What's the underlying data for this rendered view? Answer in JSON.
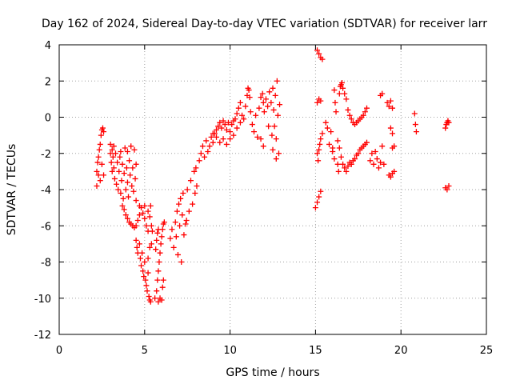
{
  "chart_data": {
    "type": "scatter",
    "title": "Day 162 of 2024, Sidereal Day-to-day VTEC variation (SDTVAR) for receiver larr",
    "xlabel": "GPS time / hours",
    "ylabel": "SDTVAR / TECUs",
    "xlim": [
      0,
      25
    ],
    "ylim": [
      -12,
      4
    ],
    "xticks": [
      0,
      5,
      10,
      15,
      20,
      25
    ],
    "yticks": [
      -12,
      -10,
      -8,
      -6,
      -4,
      -2,
      0,
      2,
      4
    ],
    "grid": true,
    "marker": "plus",
    "color": "#ff0000",
    "series": [
      {
        "points": [
          [
            2.2,
            -3.8
          ],
          [
            2.2,
            -3.0
          ],
          [
            2.25,
            -2.5
          ],
          [
            2.3,
            -3.2
          ],
          [
            2.3,
            -2.2
          ],
          [
            2.35,
            -1.8
          ],
          [
            2.4,
            -3.5
          ],
          [
            2.4,
            -1.5
          ],
          [
            2.45,
            -1.0
          ],
          [
            2.5,
            -0.7
          ],
          [
            2.5,
            -2.6
          ],
          [
            2.55,
            -0.6
          ],
          [
            2.6,
            -0.8
          ],
          [
            2.6,
            -3.2
          ],
          [
            3.0,
            -1.5
          ],
          [
            3.0,
            -2.0
          ],
          [
            3.05,
            -2.5
          ],
          [
            3.1,
            -1.8
          ],
          [
            3.1,
            -3.0
          ],
          [
            3.15,
            -2.2
          ],
          [
            3.2,
            -2.8
          ],
          [
            3.2,
            -1.6
          ],
          [
            3.25,
            -3.4
          ],
          [
            3.3,
            -2.0
          ],
          [
            3.35,
            -3.7
          ],
          [
            3.4,
            -2.5
          ],
          [
            3.45,
            -4.0
          ],
          [
            3.5,
            -3.0
          ],
          [
            3.55,
            -2.2
          ],
          [
            3.6,
            -4.2
          ],
          [
            3.6,
            -1.9
          ],
          [
            3.65,
            -3.5
          ],
          [
            3.7,
            -2.6
          ],
          [
            3.75,
            -4.5
          ],
          [
            3.8,
            -3.1
          ],
          [
            3.85,
            -1.7
          ],
          [
            3.9,
            -4.0
          ],
          [
            3.95,
            -2.8
          ],
          [
            4.0,
            -3.6
          ],
          [
            4.0,
            -1.9
          ],
          [
            4.05,
            -4.4
          ],
          [
            4.1,
            -2.4
          ],
          [
            4.15,
            -3.2
          ],
          [
            4.2,
            -1.6
          ],
          [
            4.25,
            -3.8
          ],
          [
            4.3,
            -2.8
          ],
          [
            4.35,
            -4.1
          ],
          [
            4.4,
            -1.8
          ],
          [
            4.45,
            -3.4
          ],
          [
            4.5,
            -2.6
          ],
          [
            4.5,
            -4.6
          ],
          [
            3.7,
            -4.9
          ],
          [
            3.8,
            -5.1
          ],
          [
            3.9,
            -5.4
          ],
          [
            4.0,
            -5.6
          ],
          [
            4.1,
            -5.8
          ],
          [
            4.2,
            -5.9
          ],
          [
            4.3,
            -6.0
          ],
          [
            4.4,
            -6.1
          ],
          [
            4.5,
            -6.0
          ],
          [
            4.6,
            -5.7
          ],
          [
            4.7,
            -5.4
          ],
          [
            4.7,
            -4.9
          ],
          [
            4.8,
            -5.0
          ],
          [
            4.9,
            -5.3
          ],
          [
            5.0,
            -5.6
          ],
          [
            5.0,
            -4.9
          ],
          [
            5.1,
            -6.0
          ],
          [
            5.2,
            -6.3
          ],
          [
            5.2,
            -5.2
          ],
          [
            5.3,
            -5.5
          ],
          [
            5.35,
            -4.9
          ],
          [
            5.4,
            -6.0
          ],
          [
            5.45,
            -6.3
          ],
          [
            4.5,
            -6.8
          ],
          [
            4.55,
            -7.2
          ],
          [
            4.6,
            -7.5
          ],
          [
            4.7,
            -7.0
          ],
          [
            4.75,
            -7.8
          ],
          [
            4.8,
            -8.2
          ],
          [
            4.85,
            -7.5
          ],
          [
            4.9,
            -8.5
          ],
          [
            4.95,
            -8.8
          ],
          [
            5.0,
            -8.0
          ],
          [
            5.05,
            -9.0
          ],
          [
            5.1,
            -9.3
          ],
          [
            5.15,
            -9.6
          ],
          [
            5.2,
            -8.6
          ],
          [
            5.25,
            -9.9
          ],
          [
            5.3,
            -10.1
          ],
          [
            5.35,
            -10.2
          ],
          [
            5.2,
            -7.8
          ],
          [
            5.3,
            -7.2
          ],
          [
            5.4,
            -7.0
          ],
          [
            5.6,
            -10.0
          ],
          [
            5.7,
            -9.6
          ],
          [
            5.75,
            -9.0
          ],
          [
            5.8,
            -8.5
          ],
          [
            5.85,
            -8.0
          ],
          [
            5.9,
            -7.5
          ],
          [
            5.95,
            -7.0
          ],
          [
            6.0,
            -6.6
          ],
          [
            6.05,
            -6.2
          ],
          [
            6.1,
            -5.9
          ],
          [
            6.15,
            -5.8
          ],
          [
            5.8,
            -10.2
          ],
          [
            5.9,
            -10.0
          ],
          [
            6.0,
            -10.1
          ],
          [
            6.05,
            -9.4
          ],
          [
            6.1,
            -9.0
          ],
          [
            5.65,
            -7.3
          ],
          [
            5.7,
            -6.8
          ],
          [
            5.75,
            -6.4
          ],
          [
            5.8,
            -6.2
          ],
          [
            6.5,
            -6.7
          ],
          [
            6.6,
            -6.2
          ],
          [
            6.7,
            -7.2
          ],
          [
            6.8,
            -5.8
          ],
          [
            6.85,
            -6.6
          ],
          [
            6.9,
            -5.2
          ],
          [
            6.95,
            -7.6
          ],
          [
            7.0,
            -4.8
          ],
          [
            7.05,
            -6.0
          ],
          [
            7.1,
            -4.5
          ],
          [
            7.15,
            -8.0
          ],
          [
            7.2,
            -5.4
          ],
          [
            7.25,
            -4.2
          ],
          [
            7.3,
            -6.5
          ],
          [
            7.4,
            -5.9
          ],
          [
            7.45,
            -5.7
          ],
          [
            7.5,
            -4.0
          ],
          [
            7.6,
            -5.2
          ],
          [
            7.7,
            -3.5
          ],
          [
            7.8,
            -4.8
          ],
          [
            7.9,
            -3.0
          ],
          [
            7.95,
            -4.2
          ],
          [
            8.0,
            -2.8
          ],
          [
            8.05,
            -3.8
          ],
          [
            8.2,
            -2.4
          ],
          [
            8.3,
            -2.0
          ],
          [
            8.4,
            -1.6
          ],
          [
            8.5,
            -2.2
          ],
          [
            8.6,
            -1.3
          ],
          [
            8.7,
            -1.9
          ],
          [
            8.8,
            -1.6
          ],
          [
            8.9,
            -1.1
          ],
          [
            9.0,
            -1.4
          ],
          [
            9.1,
            -0.9
          ],
          [
            9.2,
            -0.7
          ],
          [
            9.3,
            -0.5
          ],
          [
            9.4,
            -0.3
          ],
          [
            9.5,
            -0.6
          ],
          [
            9.6,
            -0.2
          ],
          [
            9.7,
            -0.4
          ],
          [
            9.8,
            -0.7
          ],
          [
            9.9,
            -0.3
          ],
          [
            10.0,
            -0.8
          ],
          [
            10.1,
            -0.4
          ],
          [
            10.2,
            -0.2
          ],
          [
            10.3,
            -0.1
          ],
          [
            10.4,
            0.2
          ],
          [
            10.5,
            0.5
          ],
          [
            10.6,
            0.8
          ],
          [
            10.7,
            0.1
          ],
          [
            10.8,
            -0.1
          ],
          [
            9.0,
            -0.9
          ],
          [
            9.2,
            -1.1
          ],
          [
            9.4,
            -1.4
          ],
          [
            9.6,
            -1.2
          ],
          [
            9.8,
            -1.5
          ],
          [
            10.0,
            -1.2
          ],
          [
            10.2,
            -1.0
          ],
          [
            10.4,
            -0.6
          ],
          [
            10.6,
            -0.3
          ],
          [
            10.9,
            0.6
          ],
          [
            11.0,
            1.2
          ],
          [
            11.05,
            1.6
          ],
          [
            11.1,
            1.5
          ],
          [
            11.15,
            1.1
          ],
          [
            11.2,
            0.3
          ],
          [
            11.3,
            -0.4
          ],
          [
            11.4,
            -0.8
          ],
          [
            11.5,
            0.1
          ],
          [
            11.6,
            -1.1
          ],
          [
            11.7,
            0.5
          ],
          [
            11.8,
            1.1
          ],
          [
            11.9,
            1.3
          ],
          [
            11.95,
            0.8
          ],
          [
            12.0,
            0.3
          ],
          [
            12.1,
            1.0
          ],
          [
            12.2,
            0.6
          ],
          [
            12.25,
            -0.5
          ],
          [
            12.3,
            1.4
          ],
          [
            12.4,
            0.8
          ],
          [
            12.45,
            -1.0
          ],
          [
            12.5,
            1.6
          ],
          [
            12.55,
            0.4
          ],
          [
            12.6,
            -0.5
          ],
          [
            12.65,
            1.2
          ],
          [
            12.7,
            -1.2
          ],
          [
            12.75,
            2.0
          ],
          [
            12.8,
            0.1
          ],
          [
            12.85,
            -2.0
          ],
          [
            12.9,
            0.7
          ],
          [
            12.5,
            -1.8
          ],
          [
            12.7,
            -2.3
          ],
          [
            11.8,
            -1.2
          ],
          [
            11.95,
            -1.6
          ],
          [
            15.1,
            3.7
          ],
          [
            15.2,
            3.5
          ],
          [
            15.3,
            3.3
          ],
          [
            15.4,
            3.2
          ],
          [
            15.0,
            -5.0
          ],
          [
            15.1,
            -4.7
          ],
          [
            15.2,
            -4.4
          ],
          [
            15.3,
            -4.1
          ],
          [
            15.1,
            0.8
          ],
          [
            15.2,
            1.0
          ],
          [
            15.3,
            0.9
          ],
          [
            15.1,
            -2.0
          ],
          [
            15.15,
            -2.4
          ],
          [
            15.2,
            -1.8
          ],
          [
            15.25,
            -1.5
          ],
          [
            15.3,
            -1.2
          ],
          [
            15.4,
            -0.9
          ],
          [
            15.6,
            -0.3
          ],
          [
            15.7,
            -0.6
          ],
          [
            15.8,
            -1.5
          ],
          [
            15.9,
            -0.8
          ],
          [
            16.0,
            -1.7
          ],
          [
            16.1,
            1.5
          ],
          [
            16.15,
            0.8
          ],
          [
            16.2,
            0.3
          ],
          [
            16.3,
            -2.6
          ],
          [
            16.35,
            -3.0
          ],
          [
            16.4,
            1.3
          ],
          [
            16.45,
            1.7
          ],
          [
            16.5,
            1.8
          ],
          [
            16.55,
            1.9
          ],
          [
            16.6,
            1.6
          ],
          [
            16.7,
            1.3
          ],
          [
            16.8,
            1.0
          ],
          [
            16.9,
            0.4
          ],
          [
            17.0,
            0.1
          ],
          [
            17.1,
            -0.1
          ],
          [
            17.2,
            -0.3
          ],
          [
            17.3,
            -0.4
          ],
          [
            17.4,
            -0.3
          ],
          [
            17.5,
            -0.2
          ],
          [
            17.6,
            -0.1
          ],
          [
            17.7,
            0.0
          ],
          [
            17.8,
            0.1
          ],
          [
            17.9,
            0.3
          ],
          [
            18.0,
            0.5
          ],
          [
            16.0,
            -1.9
          ],
          [
            16.1,
            -2.3
          ],
          [
            16.3,
            -1.3
          ],
          [
            16.4,
            -1.7
          ],
          [
            16.5,
            -2.2
          ],
          [
            16.6,
            -2.6
          ],
          [
            16.7,
            -2.8
          ],
          [
            16.8,
            -3.0
          ],
          [
            16.9,
            -2.7
          ],
          [
            17.0,
            -2.5
          ],
          [
            17.1,
            -2.6
          ],
          [
            17.2,
            -2.4
          ],
          [
            17.3,
            -2.3
          ],
          [
            17.4,
            -2.1
          ],
          [
            17.5,
            -2.0
          ],
          [
            17.6,
            -1.8
          ],
          [
            17.7,
            -1.7
          ],
          [
            17.8,
            -1.6
          ],
          [
            17.9,
            -1.5
          ],
          [
            18.0,
            -1.4
          ],
          [
            18.2,
            -2.4
          ],
          [
            18.3,
            -2.0
          ],
          [
            18.4,
            -2.6
          ],
          [
            18.5,
            -1.9
          ],
          [
            18.6,
            -2.3
          ],
          [
            18.7,
            -2.8
          ],
          [
            18.8,
            -2.5
          ],
          [
            18.9,
            -1.6
          ],
          [
            19.0,
            -2.6
          ],
          [
            18.8,
            1.2
          ],
          [
            18.9,
            1.3
          ],
          [
            19.2,
            0.8
          ],
          [
            19.3,
            0.6
          ],
          [
            19.4,
            0.9
          ],
          [
            19.5,
            0.5
          ],
          [
            19.4,
            -0.6
          ],
          [
            19.5,
            -0.9
          ],
          [
            19.5,
            -1.7
          ],
          [
            19.6,
            -1.6
          ],
          [
            19.3,
            -3.2
          ],
          [
            19.4,
            -3.3
          ],
          [
            19.5,
            -3.1
          ],
          [
            19.6,
            -3.0
          ],
          [
            20.8,
            0.2
          ],
          [
            20.85,
            -0.4
          ],
          [
            20.9,
            -0.8
          ],
          [
            22.6,
            -0.6
          ],
          [
            22.65,
            -0.4
          ],
          [
            22.7,
            -0.3
          ],
          [
            22.75,
            -0.2
          ],
          [
            22.8,
            -0.3
          ],
          [
            22.6,
            -3.9
          ],
          [
            22.7,
            -4.0
          ],
          [
            22.8,
            -3.8
          ]
        ]
      }
    ]
  }
}
